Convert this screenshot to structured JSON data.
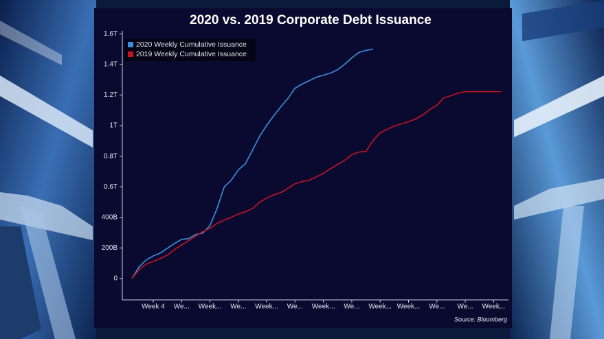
{
  "chart_data": {
    "type": "line",
    "title": "2020 vs. 2019 Corporate Debt Issuance",
    "source": "Source: Bloomberg",
    "x": [
      1,
      2,
      3,
      4,
      5,
      6,
      7,
      8,
      9,
      10,
      11,
      12,
      13,
      14,
      15,
      16,
      17,
      18,
      19,
      20,
      21,
      22,
      23,
      24,
      25,
      26,
      27,
      28,
      29,
      30,
      31,
      32,
      33,
      34,
      35,
      36,
      37,
      38,
      39,
      40,
      41,
      42,
      43,
      44,
      45,
      46,
      47,
      48,
      49,
      50,
      51,
      52,
      53
    ],
    "xlim": [
      -0.36,
      54.1
    ],
    "xticks": [
      {
        "value": 4,
        "label": "Week 4"
      },
      {
        "value": 8,
        "label": "We..."
      },
      {
        "value": 12,
        "label": "Week..."
      },
      {
        "value": 16,
        "label": "We..."
      },
      {
        "value": 20,
        "label": "Week..."
      },
      {
        "value": 24,
        "label": "We..."
      },
      {
        "value": 28,
        "label": "Week..."
      },
      {
        "value": 32,
        "label": "We..."
      },
      {
        "value": 36,
        "label": "Week..."
      },
      {
        "value": 40,
        "label": "Week..."
      },
      {
        "value": 44,
        "label": "We..."
      },
      {
        "value": 48,
        "label": "We..."
      },
      {
        "value": 52,
        "label": "Week..."
      }
    ],
    "ylim": [
      -140,
      1620
    ],
    "yticks": [
      0,
      {
        "value": 200,
        "label": "200B"
      },
      {
        "value": 400,
        "label": "400B"
      },
      {
        "value": 600,
        "label": "0.6T"
      },
      {
        "value": 800,
        "label": "0.8T"
      },
      {
        "value": 1000,
        "label": "1T"
      },
      {
        "value": 1200,
        "label": "1.2T"
      },
      {
        "value": 1400,
        "label": "1.4T"
      },
      {
        "value": 1600,
        "label": "1.6T"
      }
    ],
    "grid": false,
    "legend": "upper left",
    "series": [
      {
        "name": "2020 Weekly Cumulative Issuance",
        "color": "#3d8fe0",
        "values": [
          0,
          76,
          121,
          148,
          166,
          198,
          229,
          256,
          261,
          288,
          297,
          346,
          458,
          598,
          643,
          710,
          751,
          840,
          930,
          1002,
          1065,
          1124,
          1178,
          1245,
          1272,
          1294,
          1317,
          1330,
          1344,
          1366,
          1402,
          1443,
          1479,
          1492,
          1501,
          null,
          null,
          null,
          null,
          null,
          null,
          null,
          null,
          null,
          null,
          null,
          null,
          null,
          null,
          null,
          null,
          null,
          null
        ]
      },
      {
        "name": "2019 Weekly Cumulative Issuance",
        "color": "#c8141e",
        "values": [
          0,
          58,
          94,
          112,
          130,
          153,
          189,
          220,
          247,
          279,
          306,
          328,
          360,
          382,
          400,
          422,
          436,
          458,
          499,
          526,
          548,
          562,
          589,
          620,
          634,
          643,
          665,
          688,
          719,
          746,
          773,
          809,
          827,
          831,
          903,
          953,
          975,
          998,
          1011,
          1025,
          1043,
          1070,
          1106,
          1133,
          1182,
          1196,
          1213,
          1222,
          1222,
          1222,
          1222,
          1222,
          1222
        ]
      }
    ]
  }
}
